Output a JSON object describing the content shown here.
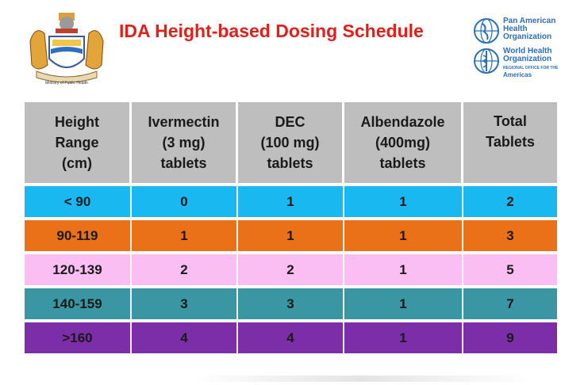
{
  "header": {
    "title": "IDA Height-based Dosing Schedule",
    "crest_caption": "Ministry of Public Health",
    "paho": [
      "Pan American",
      "Health",
      "Organization"
    ],
    "who": [
      "World Health",
      "Organization"
    ],
    "regional_office_small": "REGIONAL OFFICE FOR THE",
    "regional_office_region": "Americas"
  },
  "colors": {
    "title": "#e0201b",
    "header_row": "#bebebe",
    "row_lt90": "#1ab8f0",
    "row_90_119": "#ea7118",
    "row_120_139": "#fbbef2",
    "row_140_159": "#3b96a4",
    "row_gt160": "#7b2ea8"
  },
  "table": {
    "columns": [
      [
        "Height",
        "Range",
        "(cm)"
      ],
      [
        "Ivermectin",
        "(3 mg)",
        "tablets"
      ],
      [
        "DEC",
        "(100 mg)",
        "tablets"
      ],
      [
        "Albendazole",
        "(400mg)",
        "tablets"
      ],
      [
        "Total",
        "Tablets"
      ]
    ],
    "rows": [
      {
        "height": "< 90",
        "ivermectin": "0",
        "dec": "1",
        "albendazole": "1",
        "total": "2"
      },
      {
        "height": "90-119",
        "ivermectin": "1",
        "dec": "1",
        "albendazole": "1",
        "total": "3"
      },
      {
        "height": "120-139",
        "ivermectin": "2",
        "dec": "2",
        "albendazole": "1",
        "total": "5"
      },
      {
        "height": "140-159",
        "ivermectin": "3",
        "dec": "3",
        "albendazole": "1",
        "total": "7"
      },
      {
        "height": ">160",
        "ivermectin": "4",
        "dec": "4",
        "albendazole": "1",
        "total": "9"
      }
    ]
  }
}
